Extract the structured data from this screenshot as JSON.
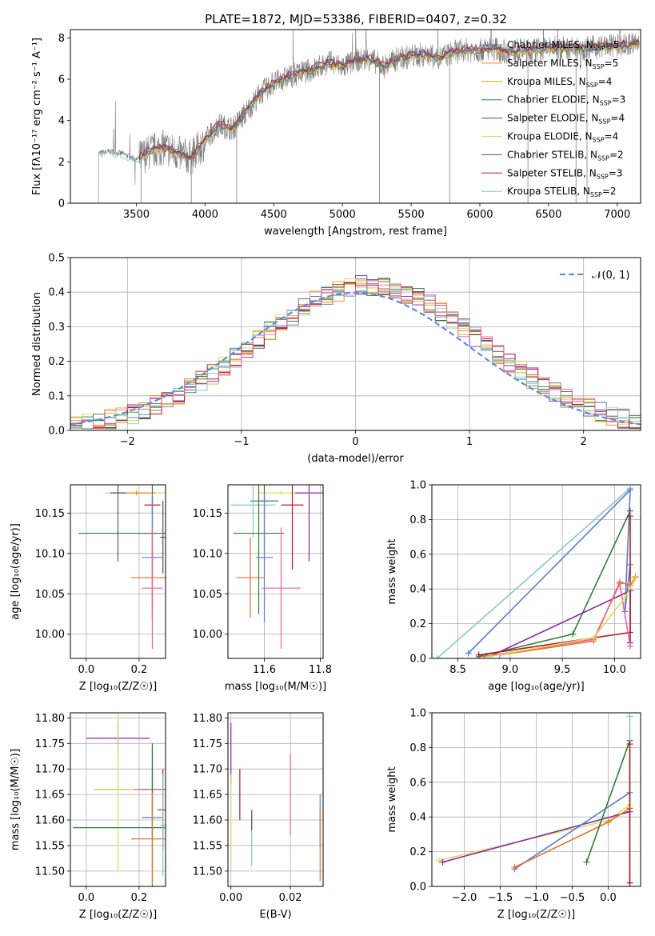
{
  "figure": {
    "title": "PLATE=1872, MJD=53386, FIBERID=0407, z=0.32"
  },
  "colors": {
    "Chabrier MILES": "#4c72b0",
    "Salpeter MILES": "#ff7f0e",
    "Kroupa MILES": "#e6a020",
    "Chabrier ELODIE": "#2f7d3a",
    "Salpeter ELODIE": "#8e24aa",
    "Kroupa ELODIE": "#d4e157",
    "Chabrier STELIB": "#555555",
    "Salpeter STELIB": "#b71c1c",
    "Kroupa STELIB": "#80cbc4",
    "data": "#808080",
    "normal": "#5b8fd6",
    "pink": "#f06292",
    "orange2": "#e76f2a",
    "blue2": "#5b7bd6"
  },
  "chart_data": [
    {
      "id": "spectrum",
      "type": "line",
      "title": "PLATE=1872, MJD=53386, FIBERID=0407, z=0.32",
      "xlabel": "wavelength [Angstrom, rest frame]",
      "ylabel": "Flux [fλ10⁻¹⁷ erg cm⁻² s⁻¹ A⁻¹]",
      "xlim": [
        3020,
        7170
      ],
      "ylim": [
        0,
        8.4
      ],
      "xticks": [
        "3500",
        "4000",
        "4500",
        "5000",
        "5500",
        "6000",
        "6500",
        "7000"
      ],
      "yticks": [
        "0",
        "2",
        "4",
        "6",
        "8"
      ],
      "grid": false,
      "legend_position": "right",
      "legend": [
        {
          "label": "Chabrier MILES, N",
          "sub": "SSP",
          "tail": "=5",
          "key": "Chabrier MILES"
        },
        {
          "label": "Salpeter MILES, N",
          "sub": "SSP",
          "tail": "=5",
          "key": "Salpeter MILES"
        },
        {
          "label": "Kroupa MILES, N",
          "sub": "SSP",
          "tail": "=4",
          "key": "Kroupa MILES"
        },
        {
          "label": "Chabrier ELODIE, N",
          "sub": "SSP",
          "tail": "=3",
          "key": "Chabrier ELODIE"
        },
        {
          "label": "Salpeter ELODIE, N",
          "sub": "SSP",
          "tail": "=4",
          "key": "Salpeter ELODIE"
        },
        {
          "label": "Kroupa ELODIE, N",
          "sub": "SSP",
          "tail": "=4",
          "key": "Kroupa ELODIE"
        },
        {
          "label": "Chabrier STELIB, N",
          "sub": "SSP",
          "tail": "=2",
          "key": "Chabrier STELIB"
        },
        {
          "label": "Salpeter STELIB, N",
          "sub": "SSP",
          "tail": "=3",
          "key": "Salpeter STELIB"
        },
        {
          "label": "Kroupa STELIB, N",
          "sub": "SSP",
          "tail": "=2",
          "key": "Kroupa STELIB"
        }
      ],
      "model_trend": {
        "x": [
          3220,
          3300,
          3400,
          3500,
          3600,
          3700,
          3800,
          3900,
          4000,
          4100,
          4200,
          4300,
          4400,
          4500,
          4600,
          4700,
          4800,
          4900,
          5000,
          5100,
          5200,
          5300,
          5400,
          5500,
          5600,
          5700,
          5800,
          5900,
          6000,
          6100,
          6200,
          6300,
          6400,
          6500,
          6600,
          6700,
          6800,
          6900,
          7000,
          7100
        ],
        "y": [
          2.4,
          2.5,
          2.4,
          2.1,
          2.5,
          2.7,
          2.4,
          2.2,
          3.0,
          3.8,
          3.6,
          4.4,
          5.3,
          5.8,
          6.1,
          6.3,
          6.5,
          6.8,
          6.6,
          6.9,
          7.0,
          6.6,
          7.0,
          7.1,
          7.2,
          7.0,
          7.3,
          7.4,
          7.4,
          7.5,
          7.3,
          7.4,
          7.4,
          7.5,
          7.5,
          7.5,
          7.5,
          7.6,
          7.6,
          7.7
        ]
      }
    },
    {
      "id": "residuals",
      "type": "histogram",
      "xlabel": "(data-model)/error",
      "ylabel": "Normed distribution",
      "xlim": [
        -2.5,
        2.5
      ],
      "ylim": [
        0,
        0.5
      ],
      "xticks": [
        "−2",
        "−1",
        "0",
        "1",
        "2"
      ],
      "yticks": [
        "0.0",
        "0.1",
        "0.2",
        "0.3",
        "0.4",
        "0.5"
      ],
      "grid": true,
      "legend_position": "top-right",
      "legend": [
        {
          "label": "𝒩(0, 1)",
          "key": "normal"
        }
      ],
      "bin_width": 0.1
    },
    {
      "id": "age_vs_Z",
      "type": "errorbar",
      "xlabel": "Z [log₁₀(Z/Z☉)]",
      "ylabel": "age  [log₁₀(age/yr)]",
      "xlim": [
        -0.06,
        0.3
      ],
      "ylim": [
        9.97,
        10.185
      ],
      "xticks": [
        "0.0",
        "0.2"
      ],
      "yticks": [
        "10.00",
        "10.05",
        "10.10",
        "10.15"
      ],
      "grid": true,
      "points": [
        {
          "x": 0.19,
          "y": 10.175,
          "xerr": 0.12,
          "yerr": 0.003,
          "c": "Kroupa ELODIE"
        },
        {
          "x": 0.19,
          "y": 10.175,
          "xerr": 0.07,
          "yerr": 0.003,
          "c": "Salpeter MILES"
        },
        {
          "x": 0.12,
          "y": 10.175,
          "xerr": 0.03,
          "yerr": 0.085,
          "c": "Chabrier STELIB"
        },
        {
          "x": 0.25,
          "y": 10.16,
          "xerr": 0.03,
          "yerr": 0.01,
          "c": "Salpeter STELIB"
        },
        {
          "x": 0.29,
          "y": 10.12,
          "xerr": 0.01,
          "yerr": 0.045,
          "c": "Chabrier STELIB"
        },
        {
          "x": 0.25,
          "y": 10.125,
          "xerr": 0.03,
          "yerr": 0.045,
          "c": "Kroupa STELIB"
        },
        {
          "x": 0.25,
          "y": 10.125,
          "xerr": 0.28,
          "yerr": 0.1,
          "c": "Chabrier ELODIE"
        },
        {
          "x": 0.25,
          "y": 10.095,
          "xerr": 0.04,
          "yerr": 0.08,
          "c": "blue2"
        },
        {
          "x": 0.25,
          "y": 10.07,
          "xerr": 0.08,
          "yerr": 0.05,
          "c": "orange2"
        },
        {
          "x": 0.25,
          "y": 10.057,
          "xerr": 0.04,
          "yerr": 0.075,
          "c": "pink"
        }
      ]
    },
    {
      "id": "age_vs_mass",
      "type": "errorbar",
      "xlabel": "mass [log₁₀(M/M☉)]",
      "ylabel": "",
      "xlim": [
        11.47,
        11.81
      ],
      "ylim": [
        9.97,
        10.185
      ],
      "xticks": [
        "11.6",
        "11.8"
      ],
      "yticks": [
        "10.00",
        "10.05",
        "10.10",
        "10.15"
      ],
      "grid": true,
      "points": [
        {
          "x": 11.66,
          "y": 10.175,
          "xerr": 0.08,
          "yerr": 0.003,
          "c": "Kroupa ELODIE"
        },
        {
          "x": 11.76,
          "y": 10.175,
          "xerr": 0.05,
          "yerr": 0.085,
          "c": "Salpeter ELODIE"
        },
        {
          "x": 11.6,
          "y": 10.165,
          "xerr": 0.05,
          "yerr": 0.06,
          "c": "Chabrier STELIB"
        },
        {
          "x": 11.56,
          "y": 10.16,
          "xerr": 0.08,
          "yerr": 0.04,
          "c": "Kroupa STELIB"
        },
        {
          "x": 11.7,
          "y": 10.16,
          "xerr": 0.04,
          "yerr": 0.08,
          "c": "Salpeter STELIB"
        },
        {
          "x": 11.58,
          "y": 10.125,
          "xerr": 0.09,
          "yerr": 0.1,
          "c": "Chabrier ELODIE"
        },
        {
          "x": 11.6,
          "y": 10.095,
          "xerr": 0.03,
          "yerr": 0.08,
          "c": "blue2"
        },
        {
          "x": 11.55,
          "y": 10.07,
          "xerr": 0.05,
          "yerr": 0.05,
          "c": "orange2"
        },
        {
          "x": 11.66,
          "y": 10.057,
          "xerr": 0.07,
          "yerr": 0.075,
          "c": "pink"
        }
      ]
    },
    {
      "id": "massweight_vs_age",
      "type": "line",
      "xlabel": "age  [log₁₀(age/yr)]",
      "ylabel": "mass weight",
      "xlim": [
        8.25,
        10.25
      ],
      "ylim": [
        0,
        1.0
      ],
      "xticks": [
        "8.5",
        "9.0",
        "9.5",
        "10.0"
      ],
      "yticks": [
        "0.0",
        "0.2",
        "0.4",
        "0.6",
        "0.8",
        "1.0"
      ],
      "grid": true,
      "series": [
        {
          "c": "Kroupa STELIB",
          "x": [
            8.3,
            10.15
          ],
          "y": [
            0.0,
            0.98
          ]
        },
        {
          "c": "blue2",
          "x": [
            8.6,
            10.15,
            10.1,
            10.15
          ],
          "y": [
            0.03,
            0.97,
            0.27,
            0.54
          ]
        },
        {
          "c": "Chabrier ELODIE",
          "x": [
            8.7,
            9.6,
            10.15
          ],
          "y": [
            0.01,
            0.14,
            0.85
          ]
        },
        {
          "c": "Salpeter ELODIE",
          "x": [
            8.8,
            10.15,
            10.15
          ],
          "y": [
            0.01,
            0.39,
            0.09
          ]
        },
        {
          "c": "Salpeter STELIB",
          "x": [
            8.7,
            10.15,
            10.15
          ],
          "y": [
            0.02,
            0.15,
            0.82
          ]
        },
        {
          "c": "orange2",
          "x": [
            8.9,
            9.8,
            10.05,
            10.15,
            10.2
          ],
          "y": [
            0.02,
            0.1,
            0.44,
            0.42,
            0.47
          ]
        },
        {
          "c": "pink",
          "x": [
            8.75,
            9.8,
            10.05,
            10.15
          ],
          "y": [
            0.01,
            0.11,
            0.43,
            0.07
          ]
        },
        {
          "c": "Kroupa ELODIE",
          "x": [
            8.8,
            9.8,
            10.1,
            10.2
          ],
          "y": [
            0.01,
            0.12,
            0.35,
            0.46
          ]
        }
      ]
    },
    {
      "id": "mass_vs_Z",
      "type": "errorbar",
      "xlabel": "Z [log₁₀(Z/Z☉)]",
      "ylabel": "mass [log₁₀(M/M☉)]",
      "xlim": [
        -0.06,
        0.3
      ],
      "ylim": [
        11.47,
        11.81
      ],
      "xticks": [
        "0.0",
        "0.2"
      ],
      "yticks": [
        "11.50",
        "11.55",
        "11.60",
        "11.65",
        "11.70",
        "11.75",
        "11.80"
      ],
      "grid": true,
      "points": [
        {
          "x": 0.12,
          "y": 11.76,
          "xerr": 0.12,
          "yerr": 0.03,
          "c": "Salpeter ELODIE"
        },
        {
          "x": 0.25,
          "y": 11.66,
          "xerr": 0.22,
          "yerr": 0.09,
          "c": "Chabrier ELODIE"
        },
        {
          "x": 0.12,
          "y": 11.66,
          "xerr": 0.09,
          "yerr": 0.16,
          "c": "Kroupa ELODIE"
        },
        {
          "x": 0.25,
          "y": 11.66,
          "xerr": 0.07,
          "yerr": 0.003,
          "c": "pink"
        },
        {
          "x": 0.29,
          "y": 11.62,
          "xerr": 0.02,
          "yerr": 0.08,
          "c": "Salpeter STELIB"
        },
        {
          "x": 0.25,
          "y": 11.605,
          "xerr": 0.04,
          "yerr": 0.1,
          "c": "blue2"
        },
        {
          "x": 0.25,
          "y": 11.585,
          "xerr": 0.3,
          "yerr": 0.16,
          "c": "Chabrier ELODIE"
        },
        {
          "x": 0.25,
          "y": 11.563,
          "xerr": 0.08,
          "yerr": 0.09,
          "c": "orange2"
        },
        {
          "x": 0.29,
          "y": 11.59,
          "xerr": 0.01,
          "yerr": 0.1,
          "c": "Kroupa STELIB"
        }
      ]
    },
    {
      "id": "mass_vs_ebv",
      "type": "errorbar",
      "xlabel": "E(B-V)",
      "ylabel": "",
      "xlim": [
        -0.001,
        0.031
      ],
      "ylim": [
        11.47,
        11.81
      ],
      "xticks": [
        "0.00",
        "0.02"
      ],
      "yticks": [
        "11.50",
        "11.55",
        "11.60",
        "11.65",
        "11.70",
        "11.75",
        "11.80"
      ],
      "grid": true,
      "points": [
        {
          "x": 0.0,
          "y": 11.73,
          "xerr": 0,
          "yerr": 0.06,
          "c": "Salpeter ELODIE"
        },
        {
          "x": 0.0,
          "y": 11.6,
          "xerr": 0,
          "yerr": 0.09,
          "c": "Kroupa ELODIE"
        },
        {
          "x": 0.003,
          "y": 11.65,
          "xerr": 0,
          "yerr": 0.05,
          "c": "Salpeter STELIB"
        },
        {
          "x": 0.007,
          "y": 11.56,
          "xerr": 0,
          "yerr": 0.05,
          "c": "Kroupa STELIB"
        },
        {
          "x": 0.007,
          "y": 11.6,
          "xerr": 0,
          "yerr": 0.02,
          "c": "Chabrier STELIB"
        },
        {
          "x": 0.02,
          "y": 11.65,
          "xerr": 0,
          "yerr": 0.08,
          "c": "pink"
        },
        {
          "x": 0.03,
          "y": 11.6,
          "xerr": 0,
          "yerr": 0.05,
          "c": "blue2"
        },
        {
          "x": 0.03,
          "y": 11.55,
          "xerr": 0,
          "yerr": 0.07,
          "c": "orange2"
        }
      ]
    },
    {
      "id": "massweight_vs_Z",
      "type": "line",
      "xlabel": "Z [log₁₀(Z/Z☉)]",
      "ylabel": "mass weight",
      "xlim": [
        -2.45,
        0.45
      ],
      "ylim": [
        0,
        1.0
      ],
      "xticks": [
        "−2.0",
        "−1.5",
        "−1.0",
        "−0.5",
        "0.0"
      ],
      "yticks": [
        "0.0",
        "0.2",
        "0.4",
        "0.6",
        "0.8",
        "1.0"
      ],
      "grid": true,
      "series": [
        {
          "c": "Kroupa ELODIE",
          "x": [
            -2.35,
            0.0,
            0.3
          ],
          "y": [
            0.15,
            0.38,
            0.47
          ]
        },
        {
          "c": "Salpeter ELODIE",
          "x": [
            -2.3,
            0.3
          ],
          "y": [
            0.14,
            0.43
          ]
        },
        {
          "c": "blue2",
          "x": [
            -1.3,
            0.3
          ],
          "y": [
            0.1,
            0.54
          ]
        },
        {
          "c": "orange2",
          "x": [
            -1.3,
            0.0,
            0.3
          ],
          "y": [
            0.11,
            0.37,
            0.45
          ]
        },
        {
          "c": "Chabrier ELODIE",
          "x": [
            -0.3,
            0.3
          ],
          "y": [
            0.14,
            0.84
          ]
        },
        {
          "c": "Kroupa STELIB",
          "x": [
            0.3,
            0.3
          ],
          "y": [
            0.0,
            0.98
          ]
        },
        {
          "c": "Salpeter STELIB",
          "x": [
            0.3,
            0.3
          ],
          "y": [
            0.02,
            0.82
          ]
        }
      ]
    }
  ]
}
